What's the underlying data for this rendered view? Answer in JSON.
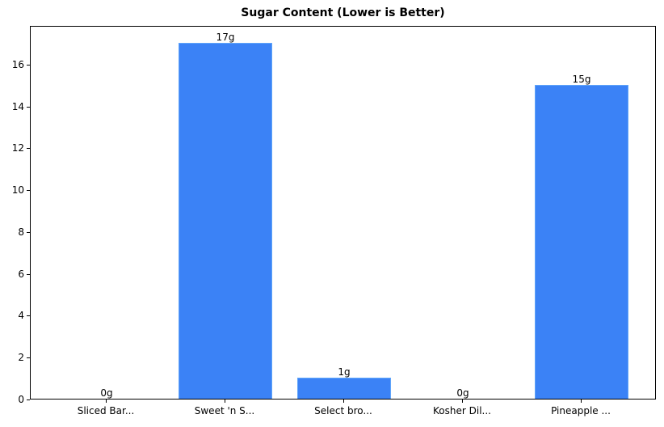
{
  "chart_data": {
    "type": "bar",
    "title": "Sugar Content (Lower is Better)",
    "xlabel": "",
    "ylabel": "",
    "categories": [
      "Sliced Bar...",
      "Sweet 'n S...",
      "Select bro...",
      "Kosher Dil...",
      "Pineapple ..."
    ],
    "values": [
      0,
      17,
      1,
      0,
      15
    ],
    "value_labels": [
      "0g",
      "17g",
      "1g",
      "0g",
      "15g"
    ],
    "ylim": [
      0,
      17.85
    ],
    "yticks": [
      0,
      2,
      4,
      6,
      8,
      10,
      12,
      14,
      16
    ],
    "grid": false,
    "legend": null,
    "bar_color": "#3b82f6"
  }
}
